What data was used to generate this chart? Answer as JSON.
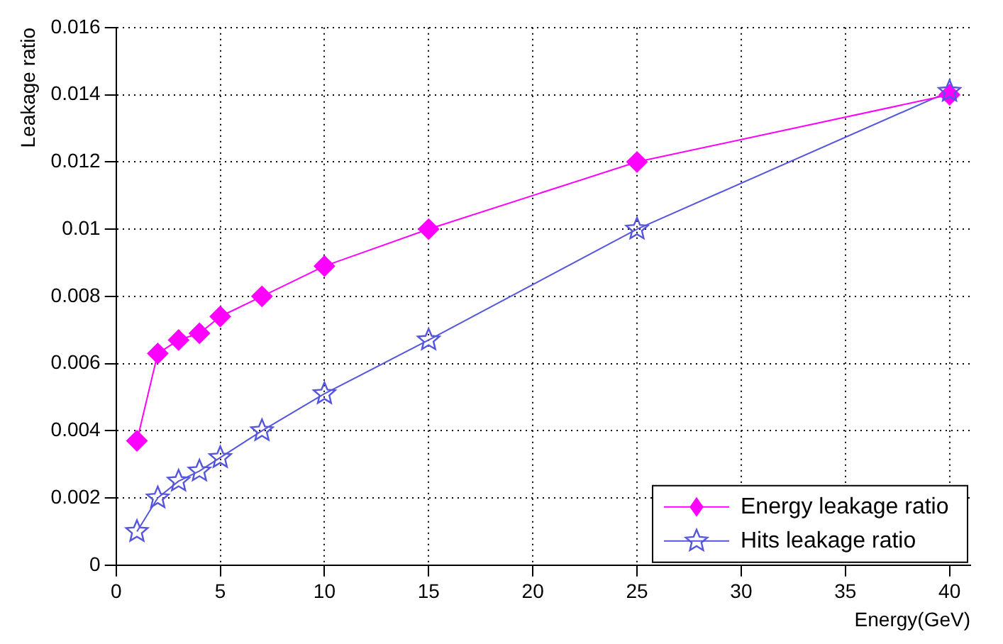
{
  "chart_data": {
    "type": "line",
    "xlabel": "Energy(GeV)",
    "ylabel": "Leakage ratio",
    "x": [
      1,
      2,
      3,
      4,
      5,
      7,
      10,
      15,
      25,
      40
    ],
    "series": [
      {
        "name": "Energy leakage ratio",
        "color": "#ff00ff",
        "marker": "diamond",
        "values": [
          0.0037,
          0.0063,
          0.0067,
          0.0069,
          0.0074,
          0.008,
          0.0089,
          0.01,
          0.012,
          0.014
        ]
      },
      {
        "name": "Hits leakage ratio",
        "color": "#5555dd",
        "marker": "star",
        "values": [
          0.001,
          0.002,
          0.0025,
          0.0028,
          0.0032,
          0.004,
          0.0051,
          0.0067,
          0.01,
          0.0141
        ]
      }
    ],
    "xlim": [
      0,
      41
    ],
    "xticks": [
      0,
      5,
      10,
      15,
      20,
      25,
      30,
      35,
      40
    ],
    "ylim": [
      0,
      0.016
    ],
    "yticks": [
      0,
      0.002,
      0.004,
      0.006,
      0.008,
      0.01,
      0.012,
      0.014,
      0.016
    ],
    "grid": true,
    "legend": "bottom right",
    "line_style": "solid"
  }
}
